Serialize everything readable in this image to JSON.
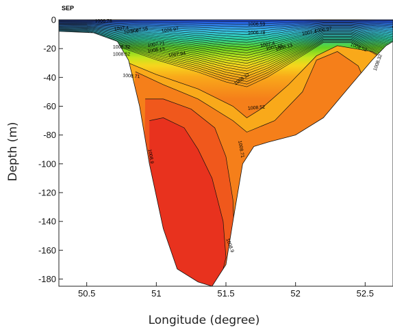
{
  "chart_data": {
    "type": "contour",
    "title": "SEP",
    "xlabel": "Longitude (degree)",
    "ylabel": "Depth (m)",
    "xlim": [
      50.3,
      52.7
    ],
    "ylim": [
      -185,
      0
    ],
    "x_ticks": [
      50.5,
      51,
      51.5,
      52,
      52.5
    ],
    "x_tick_labels": [
      "50.5",
      "51",
      "51.5",
      "52",
      "52.5"
    ],
    "y_ticks": [
      0,
      -20,
      -40,
      -60,
      -80,
      -100,
      -120,
      -140,
      -160,
      -180
    ],
    "y_tick_labels": [
      "0",
      "-20",
      "-40",
      "-60",
      "-80",
      "-100",
      "-120",
      "-140",
      "-160",
      "-180"
    ],
    "bottom_profile": [
      {
        "lon": 50.3,
        "depth": -8
      },
      {
        "lon": 50.55,
        "depth": -9
      },
      {
        "lon": 50.72,
        "depth": -15
      },
      {
        "lon": 50.8,
        "depth": -28
      },
      {
        "lon": 50.88,
        "depth": -60
      },
      {
        "lon": 50.95,
        "depth": -100
      },
      {
        "lon": 51.05,
        "depth": -145
      },
      {
        "lon": 51.15,
        "depth": -173
      },
      {
        "lon": 51.3,
        "depth": -182
      },
      {
        "lon": 51.4,
        "depth": -185
      },
      {
        "lon": 51.5,
        "depth": -170
      },
      {
        "lon": 51.55,
        "depth": -140
      },
      {
        "lon": 51.62,
        "depth": -100
      },
      {
        "lon": 51.7,
        "depth": -88
      },
      {
        "lon": 51.8,
        "depth": -85
      },
      {
        "lon": 52.0,
        "depth": -80
      },
      {
        "lon": 52.2,
        "depth": -68
      },
      {
        "lon": 52.4,
        "depth": -45
      },
      {
        "lon": 52.55,
        "depth": -28
      },
      {
        "lon": 52.65,
        "depth": -18
      },
      {
        "lon": 52.7,
        "depth": -15
      }
    ],
    "contour_labels": [
      "1006.78",
      "1007.4",
      "1007.55",
      "1007.4",
      "1006.97",
      "1008.32",
      "1008.52",
      "1008.13",
      "1007.94",
      "1007.71",
      "1008.71",
      "1006.59",
      "1006.78",
      "1007.4",
      "1007.55",
      "1007.4",
      "1006.97",
      "1008.13",
      "1008.32",
      "1008.52",
      "1008.52",
      "1008.32",
      "1008.71",
      "1008.9",
      "1008.9",
      "1006.78"
    ],
    "colors": {
      "deep_red": "#e8321e",
      "orange_red": "#f0581c",
      "orange": "#f57f1a",
      "light_orange": "#f9a91a",
      "yellow": "#f7d51d",
      "yellow_green": "#c7e41d",
      "green": "#62d324",
      "teal": "#2bd1a5",
      "cyan": "#3ac3e6",
      "blue": "#2c6fe2",
      "dark_blue": "#1b3fd4"
    }
  }
}
